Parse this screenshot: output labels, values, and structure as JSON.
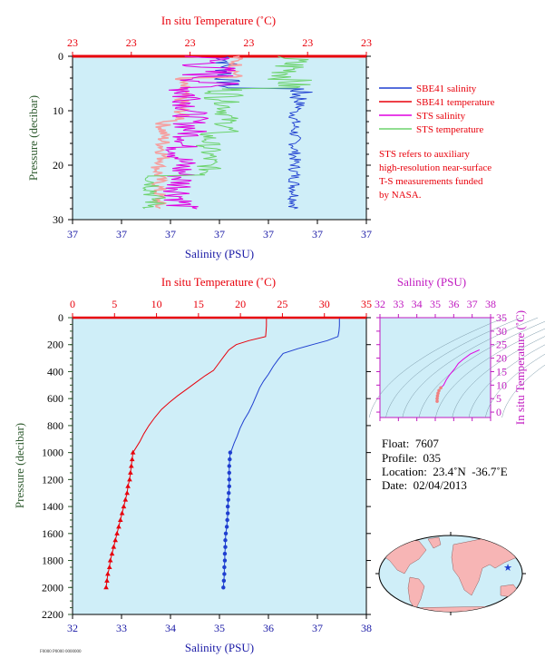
{
  "colors": {
    "salinity": "#1f3fd0",
    "temperature": "#e8000b",
    "sts_salinity": "#e000e0",
    "sts_temperature": "#6dd36d",
    "sts_temp_light": "#f5a0a0",
    "plot_bg": "#cfeef8",
    "pressure_axis": "#2e5a2e",
    "ts_axis": "#c019c0"
  },
  "top_chart": {
    "temp_axis_title": "In situ Temperature (˚C)",
    "temp_ticks": [
      "23",
      "23",
      "23",
      "23",
      "23",
      "23"
    ],
    "salinity_axis_title": "Salinity (PSU)",
    "salinity_ticks": [
      "37",
      "37",
      "37",
      "37",
      "37",
      "37",
      "37"
    ],
    "pressure_axis_title": "Pressure (decibar)",
    "pressure_ticks": [
      "0",
      "10",
      "20",
      "30"
    ],
    "legend": [
      {
        "label": "SBE41 salinity",
        "color_key": "salinity"
      },
      {
        "label": "SBE41 temperature",
        "color_key": "temperature"
      },
      {
        "label": "STS salinity",
        "color_key": "sts_salinity"
      },
      {
        "label": "STS temperature",
        "color_key": "sts_temperature"
      }
    ],
    "note": [
      "STS refers to auxiliary",
      "high-resolution near-surface",
      "T-S measurements funded",
      "by NASA."
    ]
  },
  "ts_diagram": {
    "salinity_axis_title": "Salinity (PSU)",
    "salinity_ticks": [
      "32",
      "33",
      "34",
      "35",
      "36",
      "37",
      "38"
    ],
    "temp_axis_title": "In situ Temperature (˚C)",
    "temp_ticks": [
      "0",
      "5",
      "10",
      "15",
      "20",
      "25",
      "30",
      "35"
    ]
  },
  "float_info": {
    "float": "Float:  7607",
    "profile": "Profile:  035",
    "location": "Location:  23.4˚N  -36.7˚E",
    "date": "Date:  02/04/2013"
  },
  "footer_id": "F0000 P0000 0000000",
  "chart_data": [
    {
      "type": "line",
      "title": "",
      "xlabel": "Salinity (PSU)",
      "x2label": "In situ Temperature (˚C)",
      "ylabel": "Pressure (decibar)",
      "xlim": [
        32,
        38
      ],
      "x2lim": [
        0,
        35
      ],
      "ylim": [
        2200,
        0
      ],
      "x_ticks": [
        32,
        33,
        34,
        35,
        36,
        37,
        38
      ],
      "x2_ticks": [
        0,
        5,
        10,
        15,
        20,
        25,
        30,
        35
      ],
      "y_ticks": [
        0,
        200,
        400,
        600,
        800,
        1000,
        1200,
        1400,
        1600,
        1800,
        2000,
        2200
      ],
      "grid": false,
      "series": [
        {
          "name": "SBE41 salinity",
          "axis": "salinity",
          "marker": "circle",
          "points": [
            [
              37.45,
              5
            ],
            [
              37.45,
              60
            ],
            [
              37.44,
              100
            ],
            [
              37.42,
              140
            ],
            [
              37.2,
              170
            ],
            [
              36.9,
              200
            ],
            [
              36.6,
              230
            ],
            [
              36.3,
              265
            ],
            [
              36.2,
              310
            ],
            [
              36.1,
              360
            ],
            [
              36.0,
              420
            ],
            [
              35.9,
              470
            ],
            [
              35.82,
              520
            ],
            [
              35.75,
              580
            ],
            [
              35.68,
              640
            ],
            [
              35.6,
              700
            ],
            [
              35.5,
              760
            ],
            [
              35.42,
              820
            ],
            [
              35.36,
              880
            ],
            [
              35.3,
              930
            ],
            [
              35.25,
              980
            ],
            [
              35.22,
              1000
            ],
            [
              35.21,
              1050
            ],
            [
              35.2,
              1100
            ],
            [
              35.2,
              1150
            ],
            [
              35.2,
              1200
            ],
            [
              35.2,
              1250
            ],
            [
              35.19,
              1300
            ],
            [
              35.18,
              1350
            ],
            [
              35.17,
              1400
            ],
            [
              35.17,
              1450
            ],
            [
              35.16,
              1500
            ],
            [
              35.15,
              1550
            ],
            [
              35.13,
              1600
            ],
            [
              35.12,
              1650
            ],
            [
              35.12,
              1700
            ],
            [
              35.11,
              1750
            ],
            [
              35.11,
              1800
            ],
            [
              35.1,
              1850
            ],
            [
              35.1,
              1900
            ],
            [
              35.09,
              1950
            ],
            [
              35.08,
              2000
            ]
          ]
        },
        {
          "name": "SBE41 temperature",
          "axis": "temperature",
          "marker": "triangle",
          "points": [
            [
              23.1,
              5
            ],
            [
              23.1,
              60
            ],
            [
              23.05,
              100
            ],
            [
              23.0,
              140
            ],
            [
              21.0,
              170
            ],
            [
              19.5,
              200
            ],
            [
              18.6,
              240
            ],
            [
              18.0,
              290
            ],
            [
              17.4,
              340
            ],
            [
              16.8,
              390
            ],
            [
              15.8,
              430
            ],
            [
              14.7,
              480
            ],
            [
              13.6,
              530
            ],
            [
              12.5,
              580
            ],
            [
              11.5,
              630
            ],
            [
              10.6,
              680
            ],
            [
              9.8,
              740
            ],
            [
              9.1,
              800
            ],
            [
              8.5,
              860
            ],
            [
              8.0,
              920
            ],
            [
              7.4,
              980
            ],
            [
              7.2,
              1000
            ],
            [
              7.1,
              1050
            ],
            [
              7.0,
              1100
            ],
            [
              6.9,
              1150
            ],
            [
              6.8,
              1200
            ],
            [
              6.6,
              1250
            ],
            [
              6.5,
              1300
            ],
            [
              6.3,
              1350
            ],
            [
              6.1,
              1400
            ],
            [
              5.9,
              1450
            ],
            [
              5.7,
              1500
            ],
            [
              5.5,
              1550
            ],
            [
              5.3,
              1600
            ],
            [
              5.1,
              1650
            ],
            [
              4.9,
              1700
            ],
            [
              4.7,
              1750
            ],
            [
              4.5,
              1800
            ],
            [
              4.4,
              1850
            ],
            [
              4.2,
              1900
            ],
            [
              4.1,
              1950
            ],
            [
              4.0,
              2000
            ]
          ]
        }
      ]
    },
    {
      "type": "scatter",
      "xlabel": "Salinity (PSU)",
      "ylabel": "In situ Temperature (˚C)",
      "xlim": [
        32,
        38
      ],
      "ylim": [
        -2,
        35
      ],
      "series": [
        {
          "name": "",
          "points": [
            [
              35.1,
              4
            ],
            [
              35.1,
              5
            ],
            [
              35.12,
              6
            ],
            [
              35.15,
              7
            ],
            [
              35.2,
              8
            ],
            [
              35.3,
              9
            ],
            [
              35.45,
              10
            ],
            [
              35.6,
              12
            ],
            [
              35.8,
              14
            ],
            [
              36.05,
              16
            ],
            [
              36.25,
              18
            ],
            [
              36.5,
              19.5
            ],
            [
              36.9,
              21.5
            ],
            [
              37.4,
              23.1
            ]
          ]
        }
      ]
    }
  ]
}
